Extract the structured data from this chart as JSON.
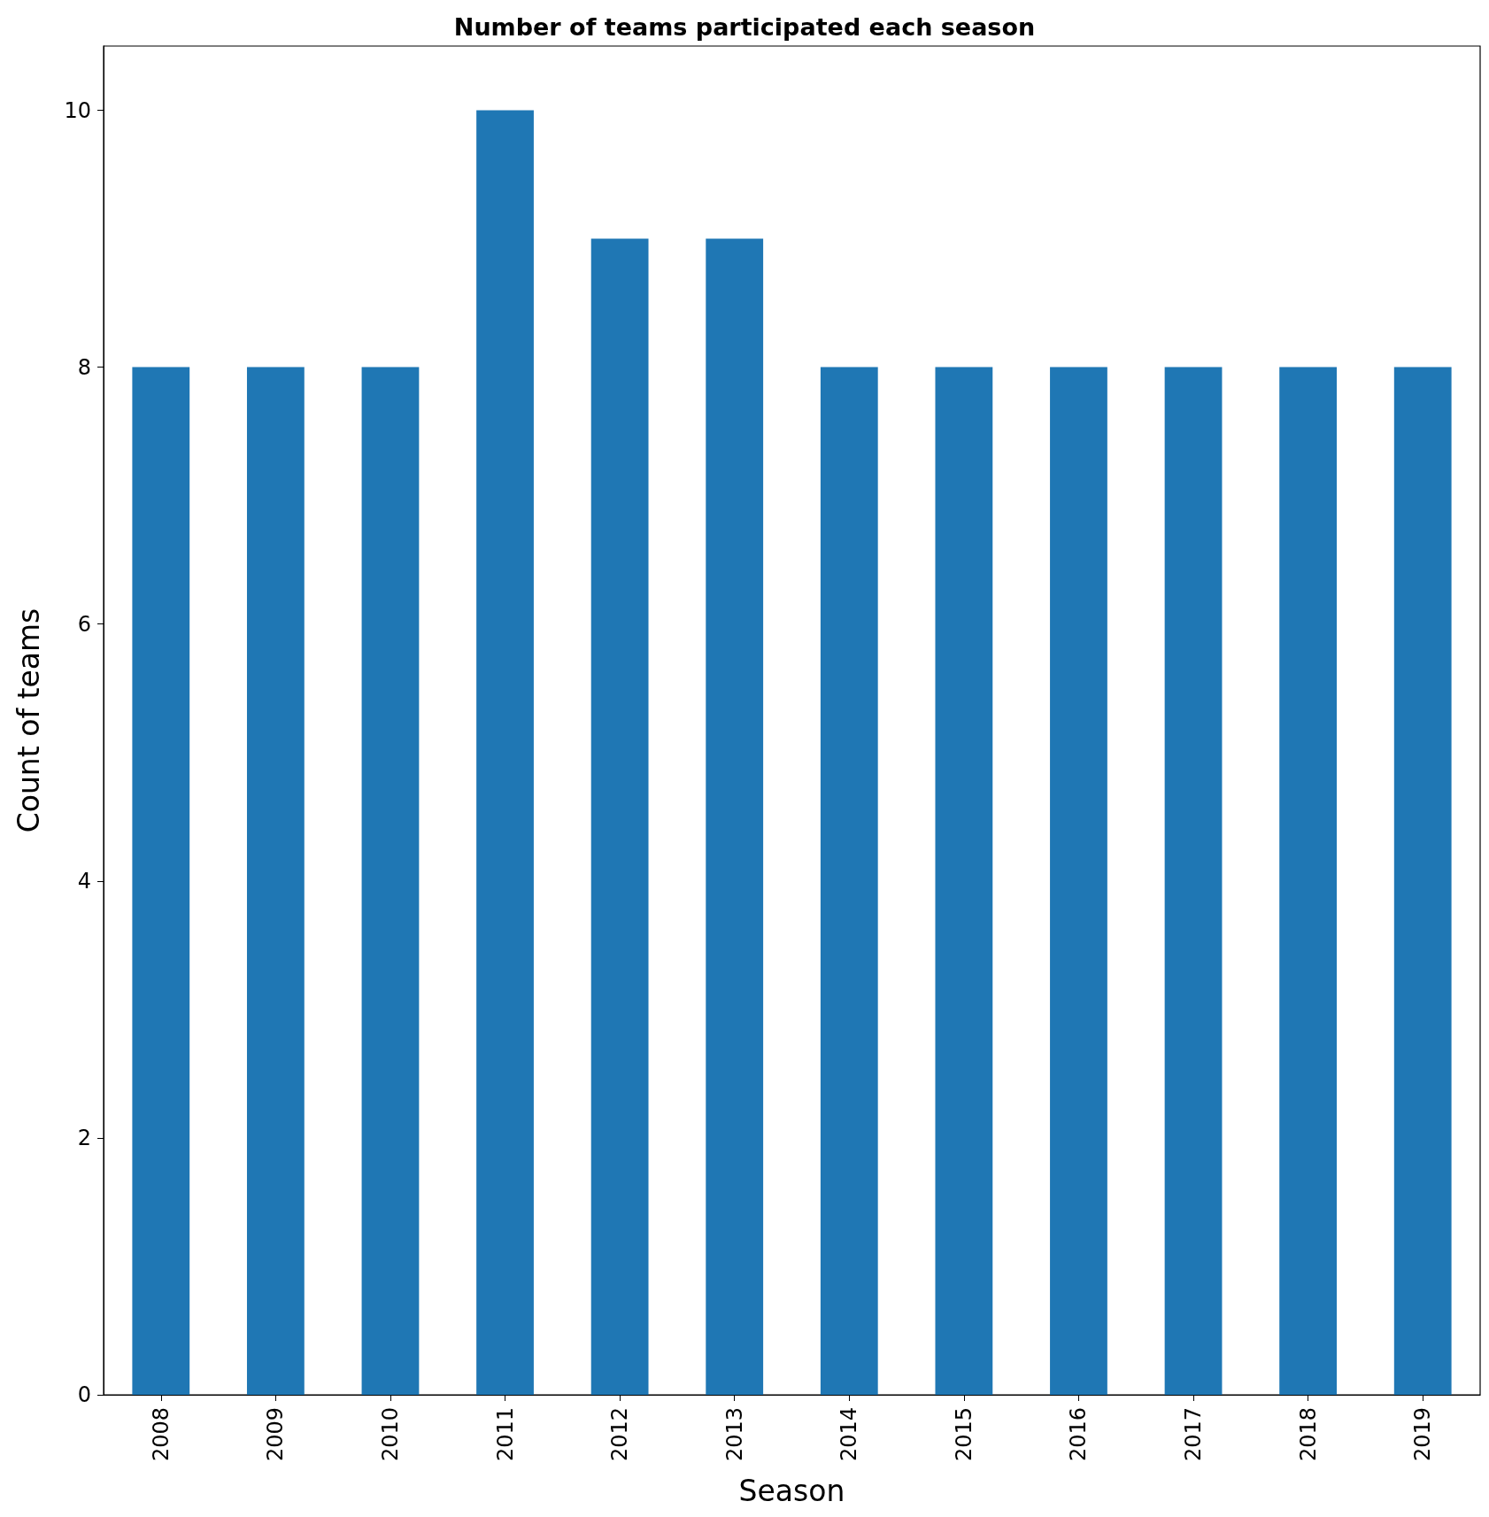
{
  "chart_data": {
    "type": "bar",
    "title": "Number of teams participated each season",
    "xlabel": "Season",
    "ylabel": "Count of teams",
    "categories": [
      "2008",
      "2009",
      "2010",
      "2011",
      "2012",
      "2013",
      "2014",
      "2015",
      "2016",
      "2017",
      "2018",
      "2019"
    ],
    "values": [
      8,
      8,
      8,
      10,
      9,
      9,
      8,
      8,
      8,
      8,
      8,
      8
    ],
    "color": "#1f77b4",
    "ylim": [
      0,
      10.5
    ],
    "yticks": [
      0,
      2,
      4,
      6,
      8,
      10
    ]
  }
}
